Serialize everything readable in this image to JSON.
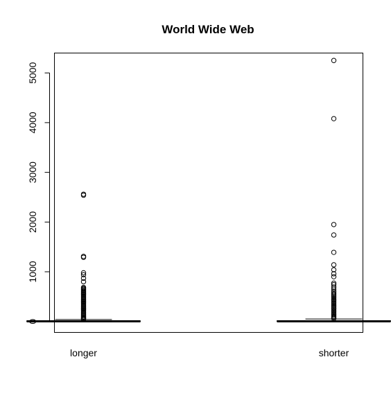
{
  "chart_data": {
    "type": "boxplot",
    "title": "World Wide Web",
    "xlabel": "",
    "ylabel": "",
    "ylim": [
      -220,
      5400
    ],
    "y_ticks": [
      0,
      1000,
      2000,
      3000,
      4000,
      5000
    ],
    "grid": false,
    "legend": "none",
    "categories": [
      "longer",
      "shorter"
    ],
    "boxes": [
      {
        "name": "longer",
        "whisker_low": 0,
        "q1": 0,
        "median": 3,
        "q3": 12,
        "whisker_high": 40,
        "outliers": [
          45,
          55,
          70,
          90,
          110,
          130,
          150,
          170,
          190,
          210,
          230,
          250,
          270,
          290,
          310,
          330,
          350,
          370,
          390,
          410,
          430,
          450,
          470,
          490,
          510,
          530,
          550,
          570,
          590,
          610,
          630,
          650,
          665,
          685,
          800,
          870,
          940,
          980,
          1290,
          1310,
          2540,
          2560
        ]
      },
      {
        "name": "shorter",
        "whisker_low": 0,
        "q1": 0,
        "median": 3,
        "q3": 15,
        "whisker_high": 50,
        "outliers": [
          60,
          80,
          100,
          125,
          150,
          175,
          200,
          225,
          250,
          275,
          300,
          325,
          350,
          375,
          400,
          425,
          450,
          475,
          500,
          525,
          550,
          580,
          610,
          650,
          690,
          740,
          770,
          900,
          960,
          1040,
          1140,
          1390,
          1740,
          1950,
          4080,
          5250
        ]
      }
    ]
  }
}
